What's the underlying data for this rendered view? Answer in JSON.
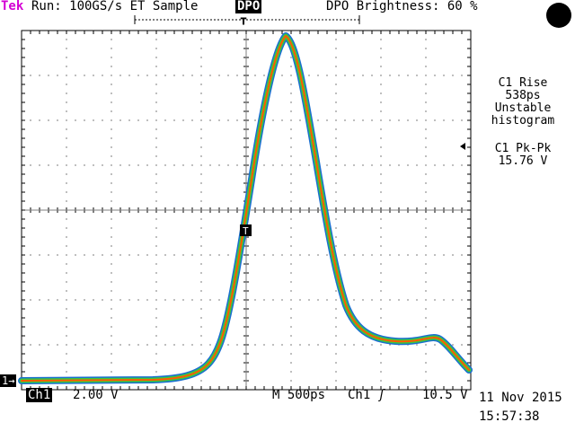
{
  "header": {
    "brand": "Tek",
    "run_status": "Run: 100GS/s ET  Sample",
    "mode": "DPO",
    "brightness": "DPO Brightness: 60 %"
  },
  "measurements": [
    {
      "lines": [
        "C1 Rise",
        "538ps",
        "Unstable",
        "histogram"
      ]
    },
    {
      "lines": [
        "C1 Pk-Pk",
        "15.76 V"
      ]
    }
  ],
  "footer": {
    "channel": "Ch1",
    "scale": "2.00 V",
    "timebase": "M  500ps",
    "trigger_source": "Ch1",
    "trigger_level": "10.5 V",
    "date": "11 Nov 2015",
    "time": "15:57:38"
  },
  "channel_marker": "1→",
  "trigger_marker": "T",
  "colors": {
    "brand": "#d400d4",
    "trace_core": "#ff5a00",
    "trace_mid": "#3cc83c",
    "trace_edge": "#1a6fd0"
  }
}
